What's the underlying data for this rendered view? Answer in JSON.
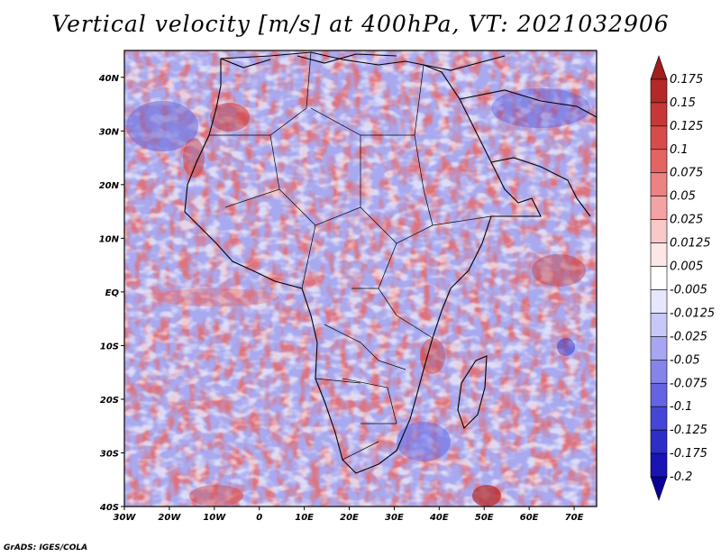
{
  "title": "Vertical velocity [m/s] at 400hPa, VT: 2021032906",
  "credit": "GrADS: IGES/COLA",
  "chart_data": {
    "type": "heatmap",
    "variable": "Vertical velocity",
    "units": "m/s",
    "level": "400hPa",
    "valid_time": "2021032906",
    "lon_range": [
      -30,
      75
    ],
    "lat_range": [
      -40,
      45
    ],
    "x_ticks": [
      {
        "lon": -30,
        "label": "30W"
      },
      {
        "lon": -20,
        "label": "20W"
      },
      {
        "lon": -10,
        "label": "10W"
      },
      {
        "lon": 0,
        "label": "0"
      },
      {
        "lon": 10,
        "label": "10E"
      },
      {
        "lon": 20,
        "label": "20E"
      },
      {
        "lon": 30,
        "label": "30E"
      },
      {
        "lon": 40,
        "label": "40E"
      },
      {
        "lon": 50,
        "label": "50E"
      },
      {
        "lon": 60,
        "label": "60E"
      },
      {
        "lon": 70,
        "label": "70E"
      }
    ],
    "y_ticks": [
      {
        "lat": 40,
        "label": "40N"
      },
      {
        "lat": 30,
        "label": "30N"
      },
      {
        "lat": 20,
        "label": "20N"
      },
      {
        "lat": 10,
        "label": "10N"
      },
      {
        "lat": 0,
        "label": "EQ"
      },
      {
        "lat": -10,
        "label": "10S"
      },
      {
        "lat": -20,
        "label": "20S"
      },
      {
        "lat": -30,
        "label": "30S"
      },
      {
        "lat": -40,
        "label": "40S"
      }
    ],
    "colorbar": {
      "labels": [
        "0.175",
        "0.15",
        "0.125",
        "0.1",
        "0.075",
        "0.05",
        "0.025",
        "0.0125",
        "0.005",
        "-0.005",
        "-0.0125",
        "-0.025",
        "-0.05",
        "-0.075",
        "-0.1",
        "-0.125",
        "-0.175",
        "-0.2"
      ],
      "colors": [
        "#a01e1e",
        "#b42828",
        "#c83737",
        "#d84b4b",
        "#e46464",
        "#ed8282",
        "#f3a3a3",
        "#f9c8c8",
        "#fde6e6",
        "#ffffff",
        "#e6e6fd",
        "#c8c8f8",
        "#a6a6f1",
        "#8484ea",
        "#6464e2",
        "#4646d6",
        "#2d2dc8",
        "#1a14b4",
        "#0a0096"
      ]
    }
  }
}
